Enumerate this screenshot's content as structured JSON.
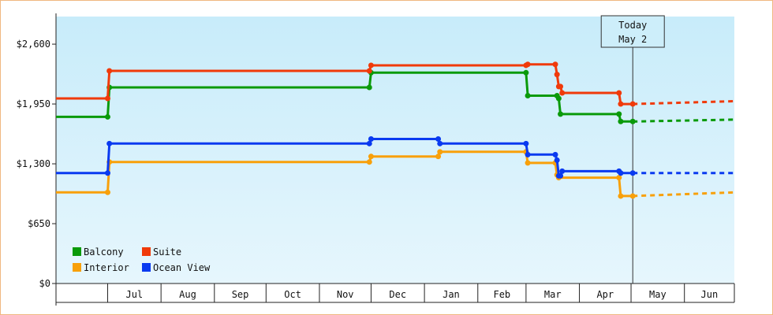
{
  "chart_data": {
    "type": "line",
    "title": "",
    "xlabel": "",
    "ylabel": "",
    "ylim": [
      0,
      2900
    ],
    "y_ticks": [
      {
        "value": 0,
        "label": "$0"
      },
      {
        "value": 650,
        "label": "$650"
      },
      {
        "value": 1300,
        "label": "$1,300"
      },
      {
        "value": 1950,
        "label": "$1,950"
      },
      {
        "value": 2600,
        "label": "$2,600"
      }
    ],
    "x_range": [
      "2022-06-01",
      "2023-06-30"
    ],
    "months": [
      {
        "label": "Jul",
        "start": "2022-07-01"
      },
      {
        "label": "Aug",
        "start": "2022-08-01"
      },
      {
        "label": "Sep",
        "start": "2022-09-01"
      },
      {
        "label": "Oct",
        "start": "2022-10-01"
      },
      {
        "label": "Nov",
        "start": "2022-11-01"
      },
      {
        "label": "Dec",
        "start": "2022-12-01"
      },
      {
        "label": "Jan",
        "start": "2023-01-01"
      },
      {
        "label": "Feb",
        "start": "2023-02-01"
      },
      {
        "label": "Mar",
        "start": "2023-03-01"
      },
      {
        "label": "Apr",
        "start": "2023-04-01"
      },
      {
        "label": "May",
        "start": "2023-05-01"
      },
      {
        "label": "Jun",
        "start": "2023-06-01"
      }
    ],
    "today": {
      "label_line1": "Today",
      "label_line2": "May 2",
      "date": "2023-05-02"
    },
    "background_gradient": [
      "#c8ecfa",
      "#e6f6fd"
    ],
    "legend_position": "bottom-left",
    "grid": false,
    "series": [
      {
        "name": "Balcony",
        "color": "#0a9a0a",
        "points": [
          {
            "x": "2022-06-01",
            "y": 1810
          },
          {
            "x": "2022-07-01",
            "y": 1810
          },
          {
            "x": "2022-07-02",
            "y": 2130
          },
          {
            "x": "2022-11-30",
            "y": 2130
          },
          {
            "x": "2022-12-01",
            "y": 2290
          },
          {
            "x": "2023-03-01",
            "y": 2290
          },
          {
            "x": "2023-03-02",
            "y": 2040
          },
          {
            "x": "2023-03-19",
            "y": 2040
          },
          {
            "x": "2023-03-20",
            "y": 2010
          },
          {
            "x": "2023-03-21",
            "y": 1840
          },
          {
            "x": "2023-04-24",
            "y": 1840
          },
          {
            "x": "2023-04-25",
            "y": 1760
          },
          {
            "x": "2023-05-02",
            "y": 1760
          }
        ],
        "forecast": [
          {
            "x": "2023-05-02",
            "y": 1760
          },
          {
            "x": "2023-06-30",
            "y": 1780
          }
        ]
      },
      {
        "name": "Suite",
        "color": "#f03a0a",
        "points": [
          {
            "x": "2022-06-01",
            "y": 2010
          },
          {
            "x": "2022-07-01",
            "y": 2010
          },
          {
            "x": "2022-07-02",
            "y": 2310
          },
          {
            "x": "2022-11-30",
            "y": 2310
          },
          {
            "x": "2022-12-01",
            "y": 2370
          },
          {
            "x": "2023-03-01",
            "y": 2370
          },
          {
            "x": "2023-03-02",
            "y": 2380
          },
          {
            "x": "2023-03-18",
            "y": 2380
          },
          {
            "x": "2023-03-19",
            "y": 2270
          },
          {
            "x": "2023-03-20",
            "y": 2140
          },
          {
            "x": "2023-03-21",
            "y": 2140
          },
          {
            "x": "2023-03-22",
            "y": 2070
          },
          {
            "x": "2023-04-24",
            "y": 2070
          },
          {
            "x": "2023-04-25",
            "y": 1950
          },
          {
            "x": "2023-05-02",
            "y": 1950
          }
        ],
        "forecast": [
          {
            "x": "2023-05-02",
            "y": 1950
          },
          {
            "x": "2023-06-30",
            "y": 1980
          }
        ]
      },
      {
        "name": "Interior",
        "color": "#f8a00a",
        "points": [
          {
            "x": "2022-06-01",
            "y": 990
          },
          {
            "x": "2022-07-01",
            "y": 990
          },
          {
            "x": "2022-07-02",
            "y": 1320
          },
          {
            "x": "2022-11-30",
            "y": 1320
          },
          {
            "x": "2022-12-01",
            "y": 1380
          },
          {
            "x": "2023-01-09",
            "y": 1380
          },
          {
            "x": "2023-01-10",
            "y": 1430
          },
          {
            "x": "2023-03-01",
            "y": 1430
          },
          {
            "x": "2023-03-02",
            "y": 1310
          },
          {
            "x": "2023-03-18",
            "y": 1310
          },
          {
            "x": "2023-03-19",
            "y": 1180
          },
          {
            "x": "2023-03-20",
            "y": 1150
          },
          {
            "x": "2023-04-24",
            "y": 1150
          },
          {
            "x": "2023-04-25",
            "y": 950
          },
          {
            "x": "2023-05-02",
            "y": 950
          }
        ],
        "forecast": [
          {
            "x": "2023-05-02",
            "y": 950
          },
          {
            "x": "2023-06-30",
            "y": 990
          }
        ]
      },
      {
        "name": "Ocean View",
        "color": "#0a3af0",
        "points": [
          {
            "x": "2022-06-01",
            "y": 1200
          },
          {
            "x": "2022-07-01",
            "y": 1200
          },
          {
            "x": "2022-07-02",
            "y": 1520
          },
          {
            "x": "2022-11-30",
            "y": 1520
          },
          {
            "x": "2022-12-01",
            "y": 1570
          },
          {
            "x": "2023-01-09",
            "y": 1570
          },
          {
            "x": "2023-01-10",
            "y": 1520
          },
          {
            "x": "2023-03-01",
            "y": 1520
          },
          {
            "x": "2023-03-02",
            "y": 1400
          },
          {
            "x": "2023-03-18",
            "y": 1400
          },
          {
            "x": "2023-03-19",
            "y": 1340
          },
          {
            "x": "2023-03-20",
            "y": 1170
          },
          {
            "x": "2023-03-21",
            "y": 1170
          },
          {
            "x": "2023-03-22",
            "y": 1220
          },
          {
            "x": "2023-04-24",
            "y": 1220
          },
          {
            "x": "2023-04-25",
            "y": 1200
          },
          {
            "x": "2023-05-02",
            "y": 1200
          }
        ],
        "forecast": [
          {
            "x": "2023-05-02",
            "y": 1200
          },
          {
            "x": "2023-06-30",
            "y": 1200
          }
        ]
      }
    ],
    "legend": [
      {
        "name": "Balcony",
        "color": "#0a9a0a"
      },
      {
        "name": "Suite",
        "color": "#f03a0a"
      },
      {
        "name": "Interior",
        "color": "#f8a00a"
      },
      {
        "name": "Ocean View",
        "color": "#0a3af0"
      }
    ]
  }
}
